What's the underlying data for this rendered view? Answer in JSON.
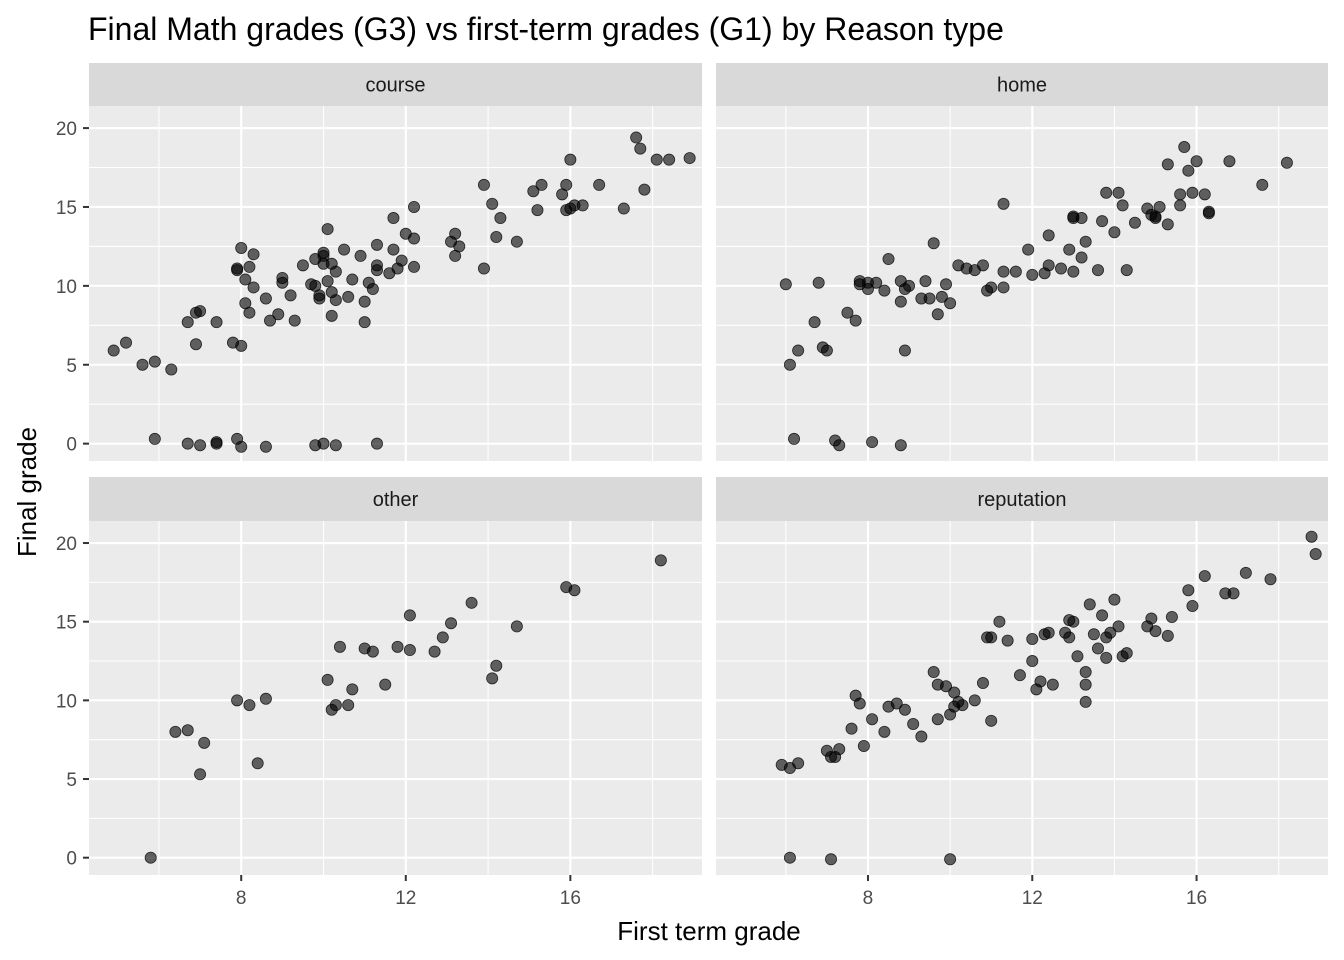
{
  "chart_data": {
    "type": "scatter",
    "title": "Final Math grades (G3) vs first-term grades (G1) by Reason type",
    "xlabel": "First term grade",
    "ylabel": "Final grade",
    "xlim": [
      4.3,
      19.2
    ],
    "ylim": [
      -1.1,
      21.4
    ],
    "x_ticks": [
      8,
      12,
      16
    ],
    "y_ticks": [
      0,
      5,
      10,
      15,
      20
    ],
    "grid": true,
    "facet_layout": "2x2",
    "point_color": "#000000",
    "point_opacity": 0.6,
    "panel_background": "#ebebeb",
    "strip_background": "#d9d9d9",
    "panels": [
      {
        "strip": "course",
        "x": [
          4.9,
          5.2,
          5.6,
          5.9,
          6.3,
          6.7,
          6.9,
          7.0,
          6.9,
          7.4,
          7.8,
          7.9,
          8.0,
          8.0,
          8.1,
          8.2,
          8.2,
          8.3,
          8.3,
          8.6,
          8.7,
          8.9,
          9.0,
          9.2,
          9.3,
          9.5,
          9.7,
          9.8,
          9.9,
          10.0,
          10.0,
          9.9,
          10.1,
          10.2,
          10.2,
          10.3,
          10.3,
          10.5,
          10.6,
          10.7,
          10.9,
          11.0,
          11.0,
          11.1,
          11.2,
          11.3,
          11.3,
          11.6,
          11.7,
          11.7,
          11.8,
          11.9,
          12.0,
          12.2,
          12.2,
          12.2,
          13.1,
          13.2,
          13.2,
          13.3,
          13.9,
          13.9,
          14.1,
          14.2,
          14.3,
          14.7,
          15.1,
          15.2,
          15.3,
          15.8,
          15.9,
          15.9,
          16.0,
          16.1,
          16.0,
          16.3,
          16.7,
          17.3,
          17.6,
          17.7,
          17.8,
          18.1,
          18.4,
          18.9,
          5.9,
          6.7,
          7.0,
          7.4,
          7.4,
          7.9,
          8.0,
          8.6,
          9.8,
          10.0,
          10.3,
          11.3,
          8.1,
          7.9,
          10.0,
          9.0,
          9.8,
          10.1,
          10.2,
          11.3
        ],
        "y": [
          5.9,
          6.4,
          5.0,
          5.2,
          4.7,
          7.7,
          8.3,
          8.4,
          6.3,
          7.7,
          6.4,
          11.1,
          6.2,
          12.4,
          10.4,
          11.2,
          8.3,
          9.9,
          12.0,
          9.2,
          7.8,
          8.2,
          10.2,
          9.4,
          7.8,
          11.3,
          10.1,
          10.0,
          9.2,
          11.9,
          12.1,
          9.4,
          13.6,
          11.4,
          8.1,
          10.9,
          9.1,
          12.3,
          9.3,
          10.4,
          11.9,
          9.0,
          7.7,
          10.2,
          9.8,
          12.6,
          11.0,
          10.8,
          14.3,
          12.3,
          11.1,
          11.6,
          13.3,
          11.2,
          13.0,
          15.0,
          12.8,
          11.9,
          13.3,
          12.5,
          11.1,
          16.4,
          15.2,
          13.1,
          14.3,
          12.8,
          16.0,
          14.8,
          16.4,
          15.8,
          14.8,
          16.4,
          18.0,
          15.1,
          14.9,
          15.1,
          16.4,
          14.9,
          19.4,
          18.7,
          16.1,
          18.0,
          18.0,
          18.1,
          0.3,
          0.0,
          -0.1,
          0.0,
          0.1,
          0.3,
          -0.2,
          -0.2,
          -0.1,
          0.0,
          -0.1,
          0.0,
          8.9,
          11.0,
          11.4,
          10.5,
          11.7,
          10.3,
          9.6,
          11.3
        ]
      },
      {
        "strip": "home",
        "x": [
          6.0,
          6.1,
          6.3,
          6.7,
          6.8,
          6.9,
          7.0,
          7.5,
          7.7,
          7.8,
          7.8,
          8.0,
          8.0,
          8.2,
          8.5,
          8.8,
          8.8,
          8.9,
          8.9,
          9.0,
          9.3,
          9.4,
          9.5,
          9.6,
          9.7,
          9.8,
          9.9,
          10.0,
          10.2,
          10.4,
          10.6,
          10.8,
          10.9,
          11.0,
          11.3,
          11.3,
          11.6,
          11.9,
          12.0,
          12.3,
          12.4,
          12.4,
          12.7,
          12.9,
          13.0,
          13.0,
          13.2,
          13.2,
          13.3,
          13.6,
          13.7,
          13.8,
          14.0,
          14.1,
          14.2,
          14.3,
          14.5,
          14.8,
          15.0,
          15.0,
          15.1,
          15.3,
          15.6,
          15.7,
          15.8,
          15.9,
          16.0,
          16.2,
          16.3,
          16.3,
          16.8,
          17.6,
          18.2,
          6.2,
          7.2,
          7.3,
          8.1,
          8.8,
          8.4
        ],
        "y": [
          10.1,
          5.0,
          5.9,
          7.7,
          10.2,
          6.1,
          5.9,
          8.3,
          7.8,
          10.3,
          10.1,
          10.2,
          9.8,
          10.2,
          11.7,
          9.0,
          10.3,
          9.8,
          5.9,
          10.0,
          9.2,
          10.3,
          9.2,
          12.7,
          8.2,
          9.3,
          10.1,
          8.9,
          11.3,
          11.1,
          11.0,
          11.3,
          9.7,
          9.9,
          15.2,
          10.9,
          10.9,
          12.3,
          10.7,
          10.8,
          11.3,
          13.2,
          11.1,
          12.3,
          14.4,
          10.9,
          14.3,
          11.8,
          12.8,
          11.0,
          14.1,
          15.9,
          13.4,
          15.9,
          15.1,
          11.0,
          14.0,
          14.9,
          14.3,
          14.4,
          15.0,
          13.9,
          15.1,
          18.8,
          17.3,
          15.9,
          17.9,
          15.8,
          14.7,
          14.6,
          17.9,
          16.4,
          17.8,
          0.3,
          0.2,
          -0.1,
          0.1,
          -0.1,
          9.7
        ],
        "x_extra": [
          11.3,
          13.0,
          14.9,
          15.3,
          15.6
        ],
        "y_extra": [
          9.9,
          14.3,
          14.5,
          17.7,
          15.8
        ]
      },
      {
        "strip": "other",
        "x": [
          5.8,
          6.4,
          6.7,
          7.0,
          7.1,
          7.9,
          8.2,
          8.4,
          8.6,
          10.1,
          10.2,
          10.3,
          10.4,
          10.6,
          10.7,
          11.0,
          11.2,
          11.5,
          11.8,
          12.1,
          12.1,
          12.7,
          12.9,
          13.1,
          13.6,
          14.1,
          14.2,
          14.7,
          15.9,
          16.1,
          18.2
        ],
        "y": [
          0.0,
          8.0,
          8.1,
          5.3,
          7.3,
          10.0,
          9.7,
          6.0,
          10.1,
          11.3,
          9.4,
          9.7,
          13.4,
          9.7,
          10.7,
          13.3,
          13.1,
          11.0,
          13.4,
          15.4,
          13.2,
          13.1,
          14.0,
          14.9,
          16.2,
          11.4,
          12.2,
          14.7,
          17.2,
          17.0,
          18.9
        ]
      },
      {
        "strip": "reputation",
        "x": [
          5.9,
          6.1,
          6.3,
          7.0,
          7.1,
          7.2,
          7.3,
          7.6,
          7.7,
          7.8,
          7.9,
          8.1,
          8.4,
          8.5,
          8.7,
          8.9,
          9.1,
          9.3,
          9.6,
          9.7,
          9.7,
          9.9,
          10.0,
          10.1,
          10.1,
          10.3,
          10.6,
          10.8,
          10.9,
          11.0,
          11.0,
          11.2,
          11.4,
          11.7,
          12.0,
          12.0,
          12.1,
          12.2,
          12.4,
          12.5,
          12.8,
          12.9,
          13.0,
          13.1,
          13.3,
          13.3,
          13.4,
          13.5,
          13.6,
          13.7,
          13.8,
          13.9,
          14.0,
          14.1,
          14.2,
          14.3,
          14.8,
          14.9,
          15.0,
          15.3,
          15.4,
          15.8,
          15.9,
          16.2,
          16.7,
          16.9,
          17.2,
          17.8,
          18.8,
          18.9,
          6.1,
          7.1,
          10.0,
          10.2,
          12.9,
          13.3,
          13.8,
          12.3
        ],
        "y": [
          5.9,
          5.7,
          6.0,
          6.8,
          6.4,
          6.4,
          6.9,
          8.2,
          10.3,
          9.8,
          7.1,
          8.8,
          8.0,
          9.6,
          9.8,
          9.4,
          8.5,
          7.7,
          11.8,
          8.8,
          11.0,
          10.9,
          9.1,
          9.6,
          10.5,
          9.7,
          10.0,
          11.1,
          14.0,
          8.7,
          14.0,
          15.0,
          13.8,
          11.6,
          13.9,
          12.5,
          10.7,
          11.2,
          14.3,
          11.0,
          14.3,
          14.0,
          15.0,
          12.8,
          11.8,
          11.0,
          16.1,
          14.2,
          13.3,
          15.4,
          12.7,
          14.3,
          16.4,
          14.7,
          12.8,
          13.0,
          14.7,
          15.2,
          14.4,
          14.1,
          15.3,
          17.0,
          16.0,
          17.9,
          16.8,
          16.8,
          18.1,
          17.7,
          20.4,
          19.3,
          0.0,
          -0.1,
          -0.1,
          9.9,
          15.1,
          9.9,
          14.0,
          14.2
        ]
      }
    ]
  }
}
